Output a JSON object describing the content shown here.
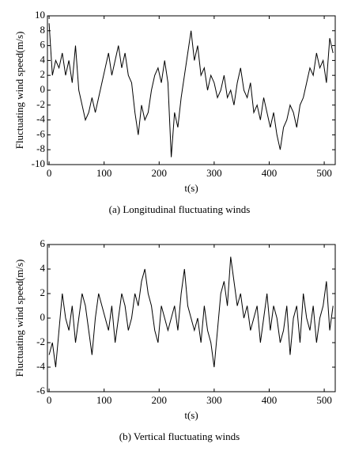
{
  "chart_data": [
    {
      "type": "line",
      "caption": "(a) Longitudinal fluctuating winds",
      "xlabel": "t(s)",
      "ylabel": "Fluctuating wind speed(m/s)",
      "xlim": [
        -3,
        520
      ],
      "xticks": [
        0,
        100,
        200,
        300,
        400,
        500
      ],
      "ylim": [
        -10,
        10
      ],
      "yticks": [
        -10,
        -8,
        -6,
        -4,
        -2,
        0,
        2,
        4,
        6,
        8,
        10
      ],
      "x": [
        0,
        6,
        12,
        18,
        24,
        30,
        36,
        42,
        48,
        54,
        60,
        66,
        72,
        78,
        84,
        90,
        96,
        102,
        108,
        114,
        120,
        126,
        132,
        138,
        144,
        150,
        156,
        162,
        168,
        174,
        180,
        186,
        192,
        198,
        204,
        210,
        216,
        222,
        228,
        234,
        240,
        246,
        252,
        258,
        264,
        270,
        276,
        282,
        288,
        294,
        300,
        306,
        312,
        318,
        324,
        330,
        336,
        342,
        348,
        354,
        360,
        366,
        372,
        378,
        384,
        390,
        396,
        402,
        408,
        414,
        420,
        426,
        432,
        438,
        444,
        450,
        456,
        462,
        468,
        474,
        480,
        486,
        492,
        498,
        504,
        510,
        516
      ],
      "series": [
        {
          "color": "#000000",
          "values": [
            9,
            2,
            4,
            3,
            5,
            2,
            4,
            1,
            6,
            0,
            -2,
            -4,
            -3,
            -1,
            -3,
            -1,
            1,
            3,
            5,
            2,
            4,
            6,
            3,
            5,
            2,
            1,
            -3,
            -6,
            -2,
            -4,
            -3,
            0,
            2,
            3,
            1,
            4,
            1,
            -9,
            -3,
            -5,
            -1,
            2,
            5,
            8,
            4,
            6,
            2,
            3,
            0,
            2,
            1,
            -1,
            0,
            2,
            -1,
            0,
            -2,
            1,
            3,
            0,
            -1,
            1,
            -3,
            -2,
            -4,
            -1,
            -3,
            -5,
            -3,
            -6,
            -8,
            -5,
            -4,
            -2,
            -3,
            -5,
            -2,
            -1,
            1,
            3,
            2,
            5,
            3,
            4,
            1,
            7,
            5
          ]
        }
      ]
    },
    {
      "type": "line",
      "caption": "(b) Vertical fluctuating winds",
      "xlabel": "t(s)",
      "ylabel": "Fluctuating wind speed(m/s)",
      "xlim": [
        -3,
        520
      ],
      "xticks": [
        0,
        100,
        200,
        300,
        400,
        500
      ],
      "ylim": [
        -6,
        6
      ],
      "yticks": [
        -6,
        -4,
        -2,
        0,
        2,
        4,
        6
      ],
      "x": [
        0,
        6,
        12,
        18,
        24,
        30,
        36,
        42,
        48,
        54,
        60,
        66,
        72,
        78,
        84,
        90,
        96,
        102,
        108,
        114,
        120,
        126,
        132,
        138,
        144,
        150,
        156,
        162,
        168,
        174,
        180,
        186,
        192,
        198,
        204,
        210,
        216,
        222,
        228,
        234,
        240,
        246,
        252,
        258,
        264,
        270,
        276,
        282,
        288,
        294,
        300,
        306,
        312,
        318,
        324,
        330,
        336,
        342,
        348,
        354,
        360,
        366,
        372,
        378,
        384,
        390,
        396,
        402,
        408,
        414,
        420,
        426,
        432,
        438,
        444,
        450,
        456,
        462,
        468,
        474,
        480,
        486,
        492,
        498,
        504,
        510,
        516
      ],
      "series": [
        {
          "color": "#000000",
          "values": [
            -3,
            -2,
            -4,
            -1,
            2,
            0,
            -1,
            1,
            -2,
            0,
            2,
            1,
            -1,
            -3,
            0,
            2,
            1,
            0,
            -1,
            1,
            -2,
            0,
            2,
            1,
            -1,
            0,
            2,
            1,
            3,
            4,
            2,
            1,
            -1,
            -2,
            1,
            0,
            -1,
            0,
            1,
            -1,
            2,
            4,
            1,
            0,
            -1,
            0,
            -2,
            1,
            -1,
            -2,
            -4,
            -1,
            2,
            3,
            1,
            5,
            3,
            1,
            2,
            0,
            1,
            -1,
            0,
            1,
            -2,
            0,
            2,
            -1,
            1,
            0,
            -2,
            -1,
            1,
            -3,
            0,
            1,
            -2,
            2,
            0,
            -1,
            1,
            -2,
            0,
            1,
            3,
            -1,
            1
          ]
        }
      ]
    }
  ]
}
